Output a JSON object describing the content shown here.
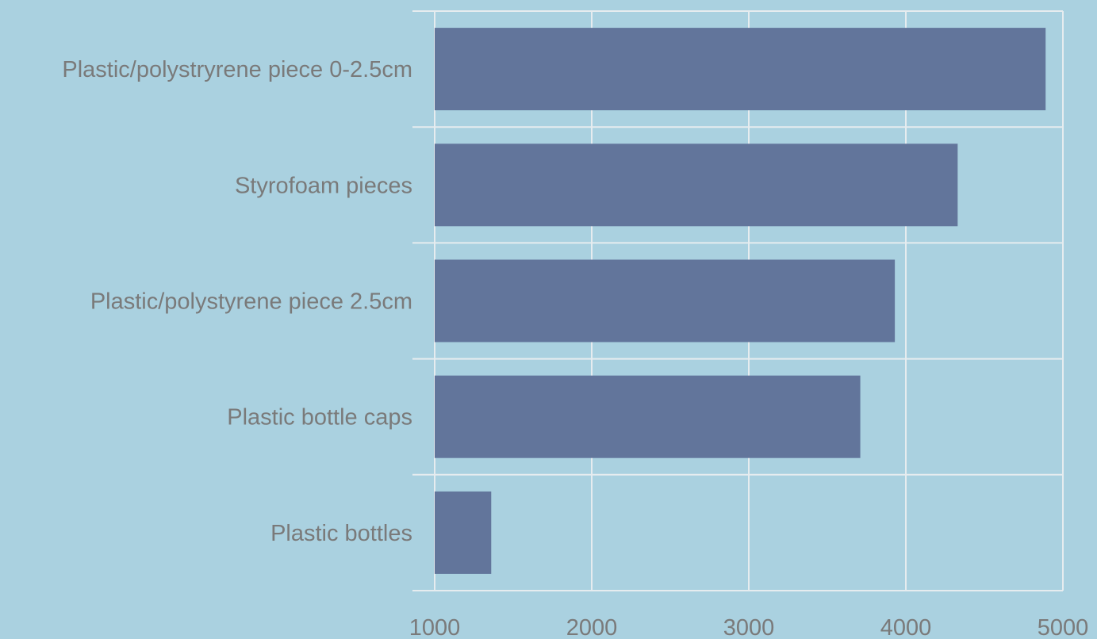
{
  "chart_data": {
    "type": "bar",
    "orientation": "horizontal",
    "title": "",
    "xlabel": "",
    "ylabel": "",
    "categories": [
      "Plastic/polystryrene piece 0-2.5cm",
      "Styrofoam pieces",
      "Plastic/polystyrene piece 2.5cm",
      "Plastic bottle caps",
      "Plastic bottles"
    ],
    "values": [
      4890,
      4330,
      3930,
      3710,
      1360
    ],
    "xlim": [
      1000,
      5000
    ],
    "x_ticks": [
      "1000",
      "2000",
      "3000",
      "4000",
      "5000"
    ],
    "grid": true,
    "legend": "none",
    "colors": {
      "background": "#aad1e0",
      "bar": "#62759b",
      "grid": "#e6ecef",
      "text": "#7a7a7a"
    }
  }
}
